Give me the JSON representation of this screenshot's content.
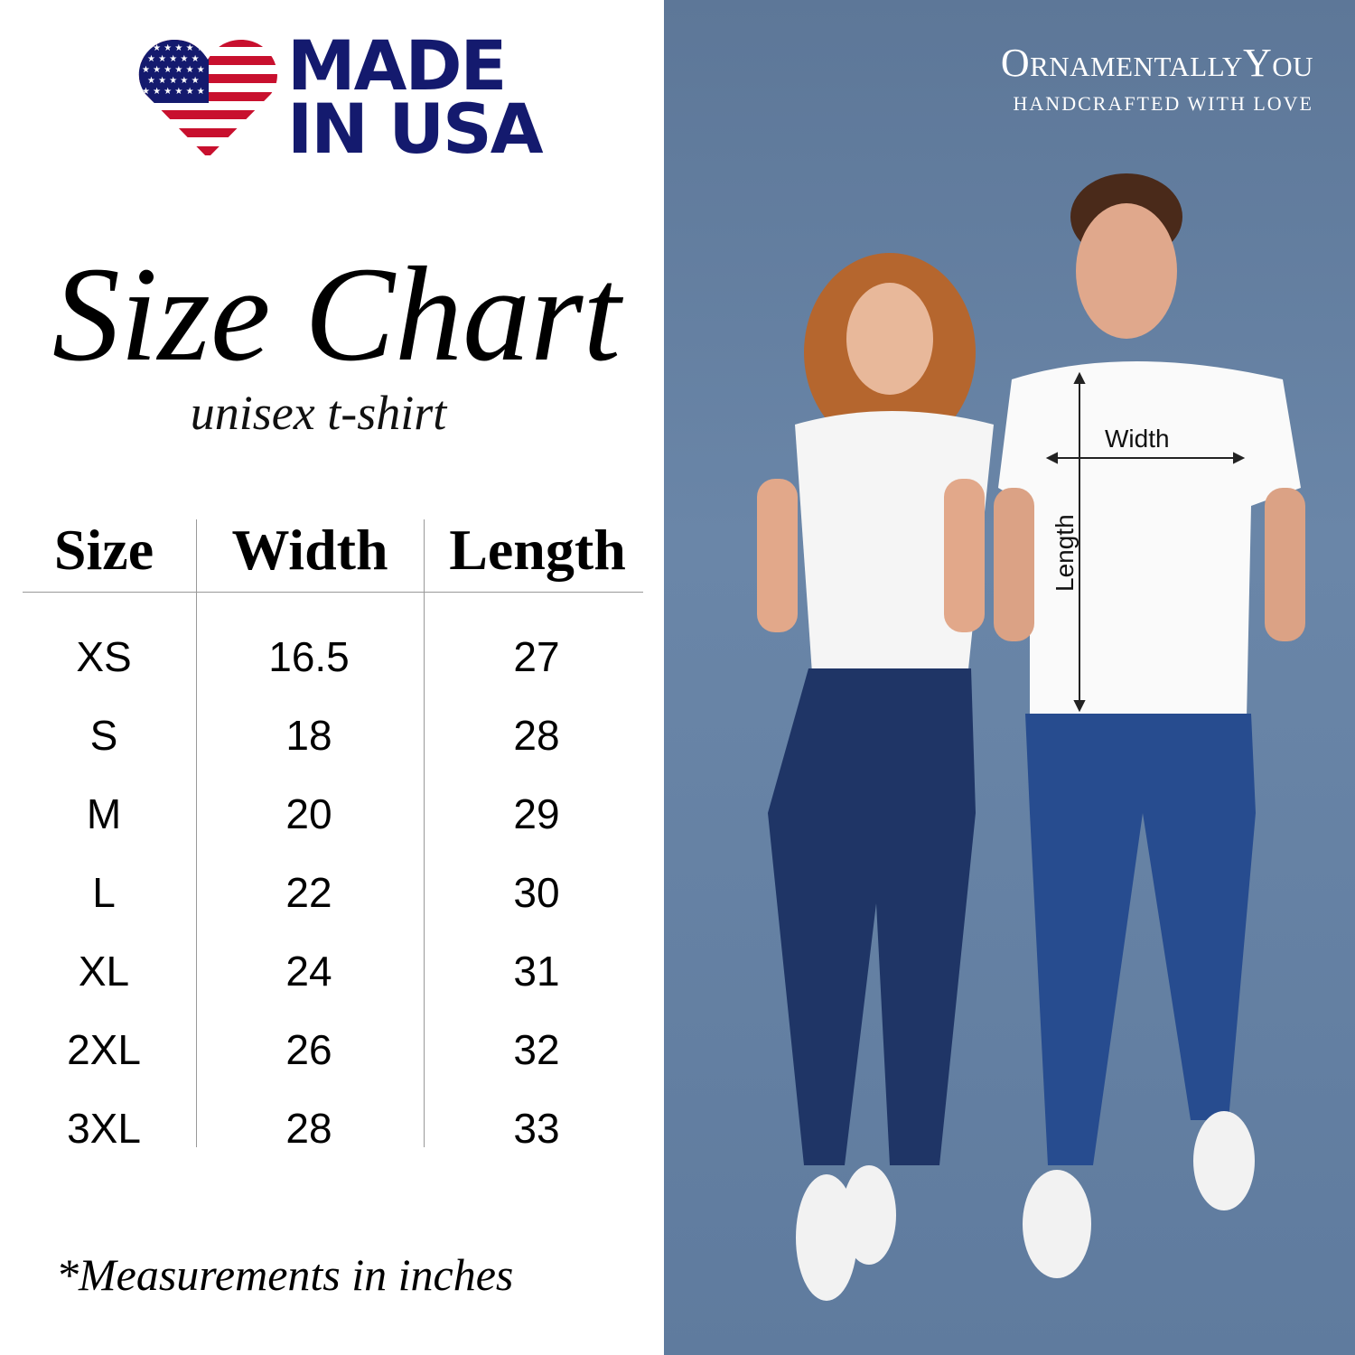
{
  "badge": {
    "line1": "MADE",
    "line2": "IN USA",
    "colors": {
      "blue": "#141a6e",
      "red": "#c8102e"
    }
  },
  "title": "Size Chart",
  "subtitle": "unisex t-shirt",
  "table": {
    "headers": [
      "Size",
      "Width",
      "Length"
    ],
    "rows": [
      [
        "XS",
        "16.5",
        "27"
      ],
      [
        "S",
        "18",
        "28"
      ],
      [
        "M",
        "20",
        "29"
      ],
      [
        "L",
        "22",
        "30"
      ],
      [
        "XL",
        "24",
        "31"
      ],
      [
        "2XL",
        "26",
        "32"
      ],
      [
        "3XL",
        "28",
        "33"
      ]
    ]
  },
  "footnote": "*Measurements in inches",
  "brand": {
    "name": "OrnamentallyYou",
    "tagline": "HANDCRAFTED WITH LOVE"
  },
  "diagram": {
    "width_label": "Width",
    "length_label": "Length"
  },
  "colors": {
    "panel": "#5f7b9e"
  }
}
